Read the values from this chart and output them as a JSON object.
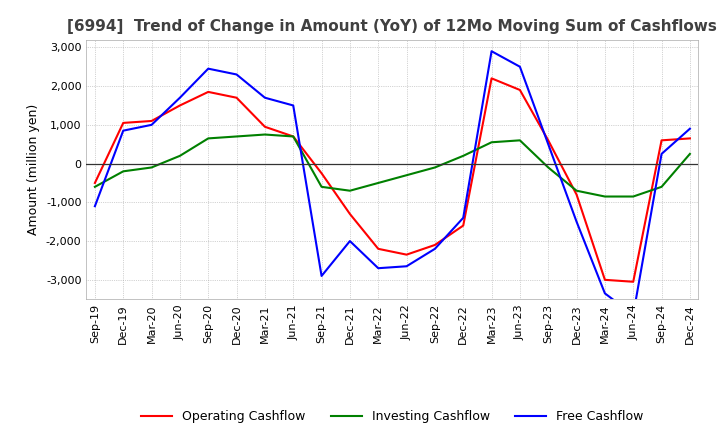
{
  "title": "[6994]  Trend of Change in Amount (YoY) of 12Mo Moving Sum of Cashflows",
  "ylabel": "Amount (million yen)",
  "x_labels": [
    "Sep-19",
    "Dec-19",
    "Mar-20",
    "Jun-20",
    "Sep-20",
    "Dec-20",
    "Mar-21",
    "Jun-21",
    "Sep-21",
    "Dec-21",
    "Mar-22",
    "Jun-22",
    "Sep-22",
    "Dec-22",
    "Mar-23",
    "Jun-23",
    "Sep-23",
    "Dec-23",
    "Mar-24",
    "Jun-24",
    "Sep-24",
    "Dec-24"
  ],
  "operating": [
    -500,
    1050,
    1100,
    1500,
    1850,
    1700,
    950,
    700,
    -250,
    -1300,
    -2200,
    -2350,
    -2100,
    -1600,
    2200,
    1900,
    600,
    -800,
    -3000,
    -3050,
    600,
    650
  ],
  "investing": [
    -600,
    -200,
    -100,
    200,
    650,
    700,
    750,
    700,
    -600,
    -700,
    -500,
    -300,
    -100,
    200,
    550,
    600,
    -100,
    -700,
    -850,
    -850,
    -600,
    250
  ],
  "free": [
    -1100,
    850,
    1000,
    1700,
    2450,
    2300,
    1700,
    1500,
    -2900,
    -2000,
    -2700,
    -2650,
    -2200,
    -1400,
    2900,
    2500,
    500,
    -1500,
    -3350,
    -3900,
    250,
    900
  ],
  "ylim": [
    -3500,
    3200
  ],
  "yticks": [
    -3000,
    -2000,
    -1000,
    0,
    1000,
    2000,
    3000
  ],
  "operating_color": "#ff0000",
  "investing_color": "#008000",
  "free_color": "#0000ff",
  "bg_color": "#ffffff",
  "grid_color": "#aaaaaa",
  "title_color": "#404040",
  "title_fontsize": 11,
  "label_fontsize": 9,
  "tick_fontsize": 8,
  "line_width": 1.5
}
